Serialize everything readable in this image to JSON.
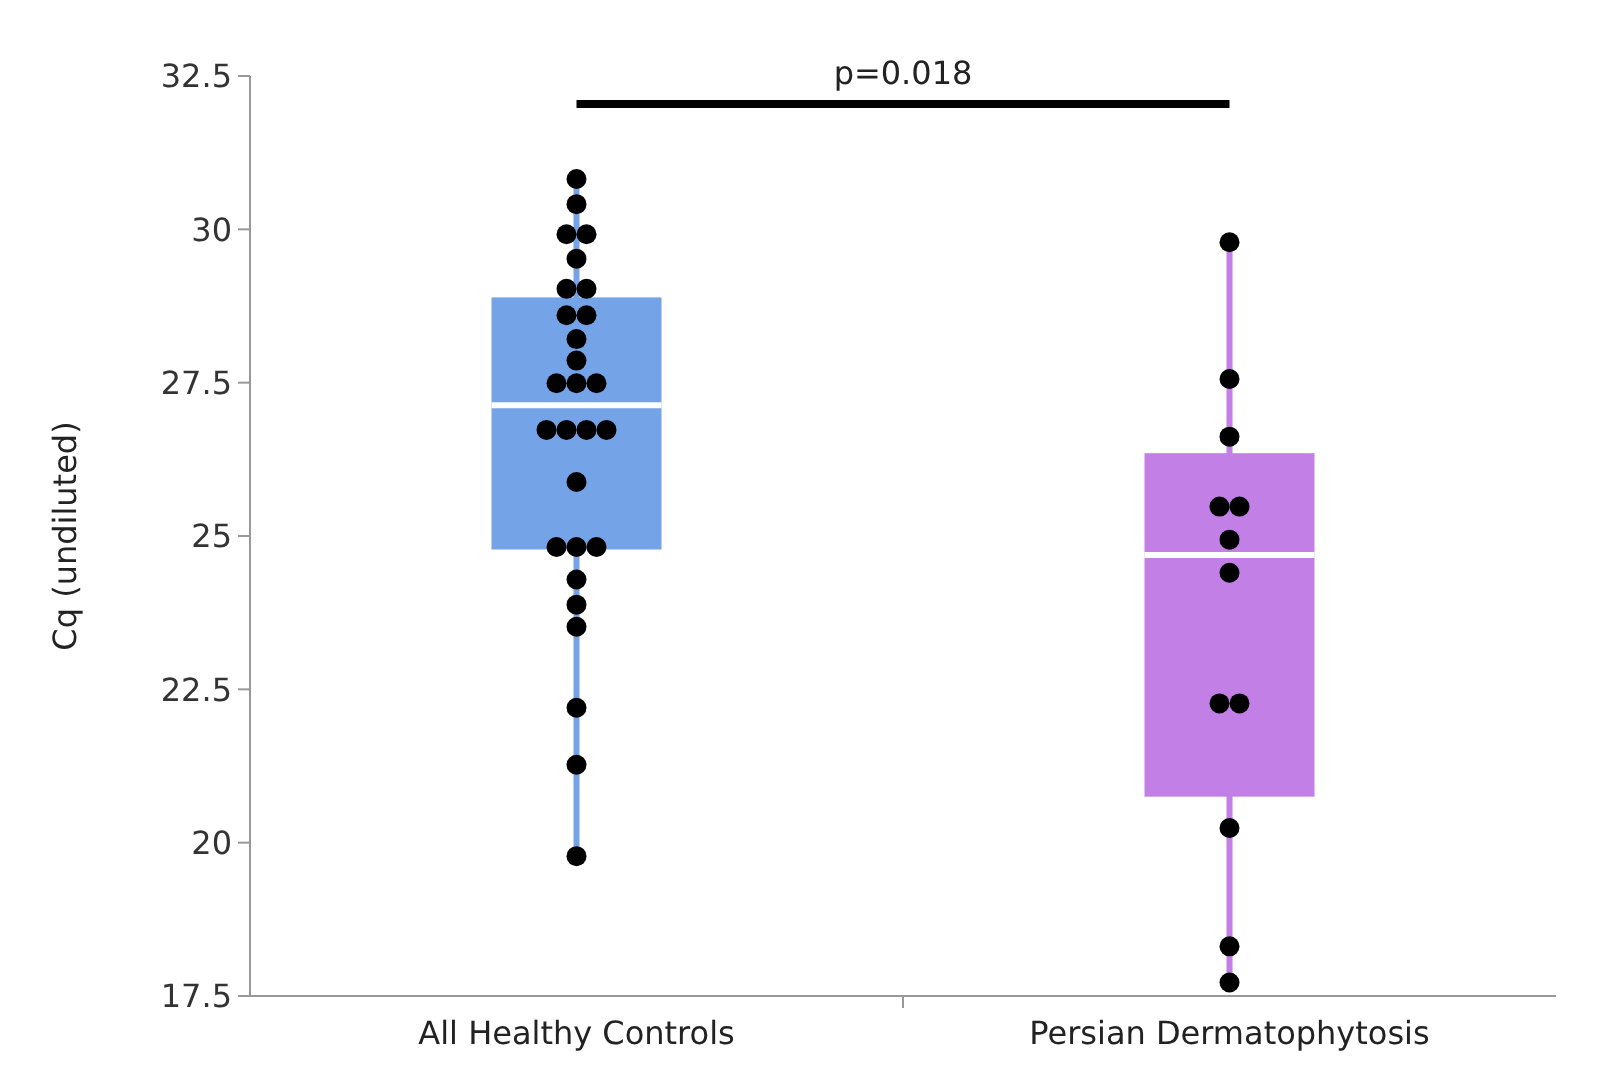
{
  "chart_data": {
    "type": "box",
    "ylabel": "Cq (undiluted)",
    "categories": [
      "All Healthy Controls",
      "Persian Dermatophytosis"
    ],
    "colors": [
      "#75a3e8",
      "#c27fe6"
    ],
    "boxes": [
      {
        "low": 19.78,
        "q1": 24.78,
        "median": 27.13,
        "q3": 28.89,
        "high": 30.82
      },
      {
        "low": 17.72,
        "q1": 20.75,
        "median": 24.69,
        "q3": 26.35,
        "high": 29.79
      }
    ],
    "ylim": [
      17.5,
      32.5
    ],
    "yticks": [
      17.5,
      20,
      22.5,
      25,
      27.5,
      30,
      32.5
    ],
    "grid": false,
    "annotations": [
      "p=0.018"
    ],
    "series": [
      {
        "type": "scatter",
        "color": "#000000",
        "x": [
          "All Healthy Controls",
          "All Healthy Controls",
          "All Healthy Controls",
          "All Healthy Controls",
          "All Healthy Controls",
          "All Healthy Controls",
          "All Healthy Controls",
          "All Healthy Controls",
          "All Healthy Controls",
          "All Healthy Controls",
          "All Healthy Controls",
          "All Healthy Controls",
          "All Healthy Controls",
          "All Healthy Controls",
          "All Healthy Controls",
          "All Healthy Controls",
          "All Healthy Controls",
          "All Healthy Controls",
          "All Healthy Controls",
          "All Healthy Controls",
          "All Healthy Controls",
          "All Healthy Controls",
          "All Healthy Controls",
          "All Healthy Controls",
          "All Healthy Controls",
          "All Healthy Controls",
          "All Healthy Controls",
          "All Healthy Controls"
        ],
        "values": [
          30.82,
          30.41,
          29.92,
          29.92,
          29.52,
          29.03,
          29.03,
          28.6,
          28.6,
          28.21,
          27.86,
          27.49,
          27.49,
          27.49,
          26.73,
          26.73,
          26.73,
          26.73,
          25.88,
          24.82,
          24.82,
          24.82,
          24.29,
          23.88,
          23.52,
          22.2,
          21.27,
          19.78
        ]
      },
      {
        "type": "scatter",
        "color": "#000000",
        "x": [
          "Persian Dermatophytosis",
          "Persian Dermatophytosis",
          "Persian Dermatophytosis",
          "Persian Dermatophytosis",
          "Persian Dermatophytosis",
          "Persian Dermatophytosis",
          "Persian Dermatophytosis",
          "Persian Dermatophytosis",
          "Persian Dermatophytosis",
          "Persian Dermatophytosis",
          "Persian Dermatophytosis",
          "Persian Dermatophytosis"
        ],
        "values": [
          29.79,
          27.56,
          26.62,
          25.48,
          25.48,
          24.94,
          24.4,
          22.27,
          22.27,
          20.24,
          18.31,
          17.72
        ]
      }
    ]
  }
}
